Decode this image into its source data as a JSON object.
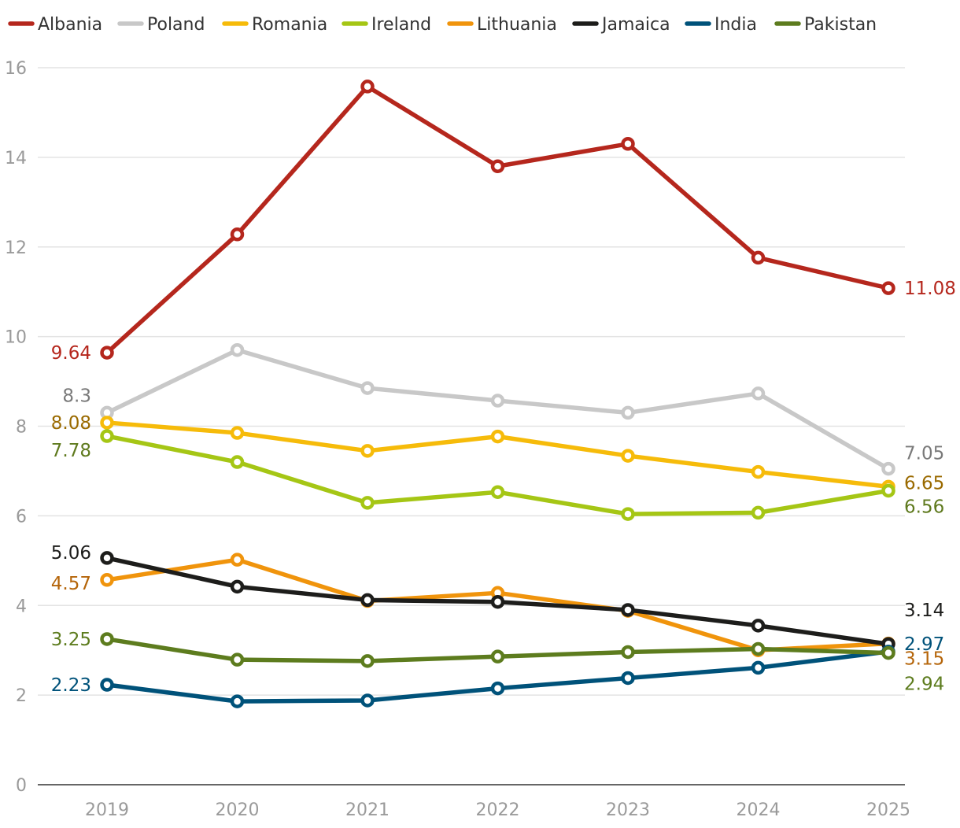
{
  "chart_data": {
    "type": "line",
    "title": "",
    "xlabel": "",
    "ylabel": "",
    "ylim": [
      0,
      16
    ],
    "y_ticks": [
      "0",
      "2",
      "4",
      "6",
      "8",
      "10",
      "12",
      "14",
      "16"
    ],
    "categories": [
      "2019",
      "2020",
      "2021",
      "2022",
      "2023",
      "2024",
      "2025"
    ],
    "grid": true,
    "legend_position": "top",
    "series": [
      {
        "name": "Albania",
        "color": "#b5271d",
        "label_color": "#b5271d",
        "values": [
          9.64,
          12.28,
          15.58,
          13.8,
          14.3,
          11.76,
          11.08
        ],
        "start_label": "9.64",
        "end_label": "11.08"
      },
      {
        "name": "Poland",
        "color": "#c8c8c8",
        "label_color": "#7a7a7a",
        "values": [
          8.3,
          9.7,
          8.85,
          8.57,
          8.3,
          8.73,
          7.05
        ],
        "start_label": "8.3",
        "end_label": "7.05"
      },
      {
        "name": "Romania",
        "color": "#f6bb0a",
        "label_color": "#9a6a00",
        "values": [
          8.08,
          7.85,
          7.45,
          7.77,
          7.34,
          6.98,
          6.65
        ],
        "start_label": "8.08",
        "end_label": "6.65"
      },
      {
        "name": "Ireland",
        "color": "#a5c615",
        "label_color": "#5f7a1e",
        "values": [
          7.78,
          7.2,
          6.29,
          6.53,
          6.04,
          6.07,
          6.56
        ],
        "start_label": "7.78",
        "end_label": "6.56"
      },
      {
        "name": "Lithuania",
        "color": "#f0940c",
        "label_color": "#b5650a",
        "values": [
          4.57,
          5.02,
          4.1,
          4.28,
          3.88,
          3.0,
          3.15
        ],
        "start_label": "4.57",
        "end_label": "3.15"
      },
      {
        "name": "Jamaica",
        "color": "#1d1d1b",
        "label_color": "#1d1d1b",
        "values": [
          5.06,
          4.42,
          4.12,
          4.08,
          3.9,
          3.55,
          3.14
        ],
        "start_label": "5.06",
        "end_label": "3.14"
      },
      {
        "name": "India",
        "color": "#00527a",
        "label_color": "#00527a",
        "values": [
          2.23,
          1.86,
          1.88,
          2.15,
          2.38,
          2.61,
          2.97
        ],
        "start_label": "2.23",
        "end_label": "2.97"
      },
      {
        "name": "Pakistan",
        "color": "#5d7c1e",
        "label_color": "#5d7c1e",
        "values": [
          3.25,
          2.79,
          2.76,
          2.86,
          2.96,
          3.03,
          2.94
        ],
        "start_label": "3.25",
        "end_label": "2.94"
      }
    ]
  }
}
